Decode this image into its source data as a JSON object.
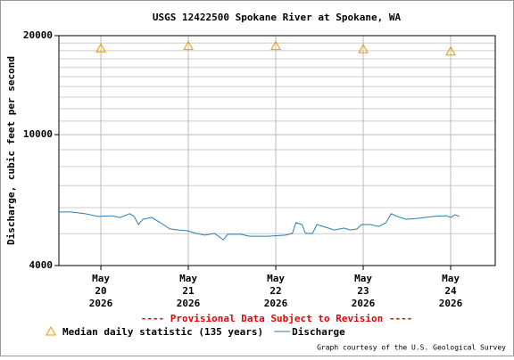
{
  "chart_data": {
    "type": "line",
    "title": "USGS 12422500 Spokane River at Spokane, WA",
    "y_label": "Discharge, cubic feet per second",
    "note": "---- Provisional Data Subject to Revision ----",
    "credit": "Graph courtesy of the U.S. Geological Survey",
    "log_y": true,
    "grid": true,
    "ylim": [
      4000,
      20000
    ],
    "yticks": [
      4000,
      10000,
      20000
    ],
    "minor_gridlines": [
      5000,
      6000,
      7000,
      8000,
      9000,
      11000,
      12000,
      13000,
      14000,
      15000,
      16000,
      17000,
      18000,
      19000
    ],
    "xlim": [
      19.52,
      24.51
    ],
    "xticks": [
      {
        "value": 20,
        "label": [
          "May",
          "20",
          "2026"
        ]
      },
      {
        "value": 21,
        "label": [
          "May",
          "21",
          "2026"
        ]
      },
      {
        "value": 22,
        "label": [
          "May",
          "22",
          "2026"
        ]
      },
      {
        "value": 23,
        "label": [
          "May",
          "23",
          "2026"
        ]
      },
      {
        "value": 24,
        "label": [
          "May",
          "24",
          "2026"
        ]
      }
    ],
    "series": [
      {
        "name": "Median daily statistic (135 years)",
        "color": "#e69a00",
        "marker": "triangle",
        "x": [
          20,
          21,
          22,
          23,
          24
        ],
        "values": [
          18300,
          18600,
          18600,
          18200,
          17900
        ]
      },
      {
        "name": "Discharge",
        "color": "#2b7bb0",
        "marker": "line",
        "x": [
          19.52,
          19.66,
          19.82,
          19.97,
          20.12,
          20.22,
          20.33,
          20.38,
          20.43,
          20.48,
          20.58,
          20.68,
          20.79,
          20.89,
          20.99,
          21.09,
          21.19,
          21.3,
          21.4,
          21.45,
          21.6,
          21.7,
          21.91,
          22.11,
          22.19,
          22.23,
          22.3,
          22.34,
          22.42,
          22.47,
          22.57,
          22.67,
          22.78,
          22.85,
          22.93,
          22.98,
          23.08,
          23.18,
          23.26,
          23.32,
          23.39,
          23.49,
          23.64,
          23.8,
          23.95,
          24.0,
          24.05,
          24.1
        ],
        "values": [
          5820,
          5820,
          5750,
          5640,
          5670,
          5600,
          5750,
          5640,
          5330,
          5530,
          5600,
          5400,
          5170,
          5130,
          5100,
          5010,
          4950,
          5010,
          4790,
          4980,
          4980,
          4910,
          4910,
          4950,
          5010,
          5400,
          5330,
          5010,
          5010,
          5330,
          5230,
          5130,
          5200,
          5130,
          5170,
          5330,
          5330,
          5260,
          5400,
          5750,
          5640,
          5530,
          5570,
          5640,
          5670,
          5600,
          5710,
          5640
        ]
      }
    ]
  }
}
